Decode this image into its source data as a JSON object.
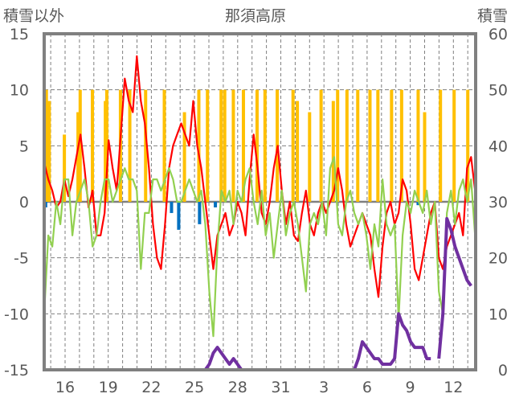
{
  "chart_data": {
    "type": "line",
    "title": "那須高原",
    "ylabel_left": "積雪以外",
    "ylabel_right": "積雪",
    "ylim_left": [
      -15,
      15
    ],
    "ylim_right": [
      0,
      60
    ],
    "yticks_left": [
      -15,
      -10,
      -5,
      0,
      5,
      10,
      15
    ],
    "yticks_right": [
      0,
      10,
      20,
      30,
      40,
      50,
      60
    ],
    "xlim_days": [
      14.45,
      44.6
    ],
    "xticks": [
      {
        "day": 16,
        "label": "16"
      },
      {
        "day": 19,
        "label": "19"
      },
      {
        "day": 22,
        "label": "22"
      },
      {
        "day": 25,
        "label": "25"
      },
      {
        "day": 28,
        "label": "28"
      },
      {
        "day": 31,
        "label": "31"
      },
      {
        "day": 34,
        "label": "3"
      },
      {
        "day": 37,
        "label": "6"
      },
      {
        "day": 40,
        "label": "9"
      },
      {
        "day": 43,
        "label": "12"
      }
    ],
    "grid": true,
    "colors": {
      "red": "#ff0000",
      "green": "#92d050",
      "purple": "#7030a0",
      "orange": "#ffc000",
      "blue": "#0070c0",
      "frame": "#808080"
    },
    "x_start_day": 14.55,
    "x_step_day": 0.28,
    "series": [
      {
        "name": "red",
        "axis": "left",
        "values": [
          3.5,
          2,
          1,
          -0.5,
          0,
          2,
          0.5,
          2,
          4,
          6,
          3,
          -0.5,
          1,
          -3,
          -3,
          -1,
          5.5,
          3,
          1,
          6,
          11,
          9,
          8,
          13,
          9,
          7,
          3,
          -2,
          -5,
          -6,
          -2,
          3,
          5,
          6,
          7,
          6,
          5,
          9,
          5,
          3,
          0,
          -3,
          -6,
          -3,
          -2,
          -1,
          -3,
          -2,
          0,
          -1,
          -3,
          2,
          6,
          3,
          -1,
          -2,
          0,
          3,
          5,
          1,
          -2,
          0,
          -3,
          -3.5,
          -1,
          1,
          -2,
          -3,
          -1,
          0,
          -1,
          0,
          1,
          3,
          1,
          -2,
          -4,
          -3,
          -2,
          -1,
          -2,
          -3,
          -6,
          -8.5,
          -4,
          -1,
          0,
          -2,
          -1,
          2,
          1,
          -2,
          -6,
          -7,
          -5,
          -3,
          -1,
          0,
          -5,
          -6,
          -4,
          -3,
          -2,
          -1,
          -3,
          3,
          4,
          1
        ]
      },
      {
        "name": "green",
        "axis": "left",
        "values": [
          -10,
          -3,
          -4,
          0,
          -2,
          2,
          2,
          -3,
          0,
          1,
          2,
          0,
          -4,
          -3,
          0,
          2,
          2,
          0,
          1,
          2,
          3,
          2,
          2,
          1,
          -6,
          -1,
          -1,
          2,
          2,
          1,
          2,
          3,
          2,
          0,
          0,
          1,
          2,
          1,
          0,
          1,
          -2,
          -8,
          -12,
          -4,
          1,
          0,
          1,
          -2,
          1,
          0,
          2,
          3,
          0,
          -2,
          1,
          -3,
          -1,
          -5,
          -2,
          1,
          -3,
          -1,
          0,
          -2,
          -5,
          -8,
          -2,
          -1,
          -2,
          0,
          -3,
          3,
          4,
          -2,
          -3,
          0,
          1,
          -1,
          -2,
          -1,
          -3,
          -6,
          -2,
          -4,
          2,
          -2,
          -3,
          -2,
          -10.5,
          -3,
          0,
          -1,
          1,
          0,
          -1,
          1,
          -2,
          0,
          -8,
          -10,
          -1,
          1,
          -2,
          1,
          2,
          0,
          2,
          -3
        ]
      },
      {
        "name": "purple",
        "axis": "right",
        "values": [
          0,
          0,
          0,
          0,
          0,
          0,
          0,
          0,
          0,
          0,
          0,
          0,
          0,
          0,
          0,
          0,
          0,
          0,
          0,
          0,
          0,
          0,
          0,
          0,
          0,
          0,
          0,
          0,
          0,
          0,
          0,
          0,
          0,
          0,
          0,
          0,
          0,
          0,
          0,
          0,
          0,
          1,
          3,
          4,
          3,
          2,
          1,
          2,
          1,
          0,
          0,
          0,
          0,
          0,
          0,
          0,
          0,
          0,
          0,
          0,
          0,
          0,
          0,
          0,
          0,
          0,
          0,
          0,
          0,
          0,
          0,
          0,
          0,
          0,
          0,
          0,
          0,
          0,
          2,
          5,
          4,
          3,
          2,
          2,
          1,
          1,
          1,
          2,
          10,
          8,
          7,
          5,
          4,
          4,
          4,
          2,
          2,
          null,
          2,
          10,
          27,
          25,
          22,
          20,
          18,
          16,
          15
        ]
      }
    ],
    "bars": [
      {
        "name": "orange",
        "axis": "left",
        "points": [
          [
            14.7,
            10
          ],
          [
            14.9,
            9
          ],
          [
            15.95,
            6
          ],
          [
            16.9,
            8
          ],
          [
            17.05,
            10
          ],
          [
            17.9,
            10
          ],
          [
            18.8,
            9
          ],
          [
            18.9,
            10
          ],
          [
            19.85,
            10
          ],
          [
            20.5,
            10
          ],
          [
            21.6,
            10
          ],
          [
            22.9,
            10
          ],
          [
            24.3,
            8
          ],
          [
            25.3,
            10
          ],
          [
            25.9,
            10
          ],
          [
            26.85,
            10
          ],
          [
            27.1,
            10
          ],
          [
            27.7,
            10
          ],
          [
            28.4,
            10
          ],
          [
            29.35,
            10
          ],
          [
            29.9,
            10
          ],
          [
            30.75,
            10
          ],
          [
            31.85,
            10
          ],
          [
            32.15,
            9
          ],
          [
            33.0,
            8
          ],
          [
            33.8,
            10
          ],
          [
            34.65,
            9
          ],
          [
            34.95,
            10
          ],
          [
            35.6,
            10
          ],
          [
            36.35,
            10
          ],
          [
            37.2,
            10
          ],
          [
            37.75,
            10
          ],
          [
            38.7,
            10
          ],
          [
            39.4,
            10
          ],
          [
            40.55,
            10
          ],
          [
            41.0,
            8
          ],
          [
            42.1,
            10
          ],
          [
            43.05,
            10
          ],
          [
            44.0,
            10
          ]
        ]
      },
      {
        "name": "blue",
        "axis": "left",
        "points": [
          [
            14.65,
            -0.5
          ],
          [
            23.4,
            -1
          ],
          [
            23.9,
            -2.5
          ],
          [
            25.35,
            -2
          ],
          [
            26.45,
            -0.5
          ],
          [
            40.55,
            -0.3
          ]
        ]
      }
    ]
  }
}
